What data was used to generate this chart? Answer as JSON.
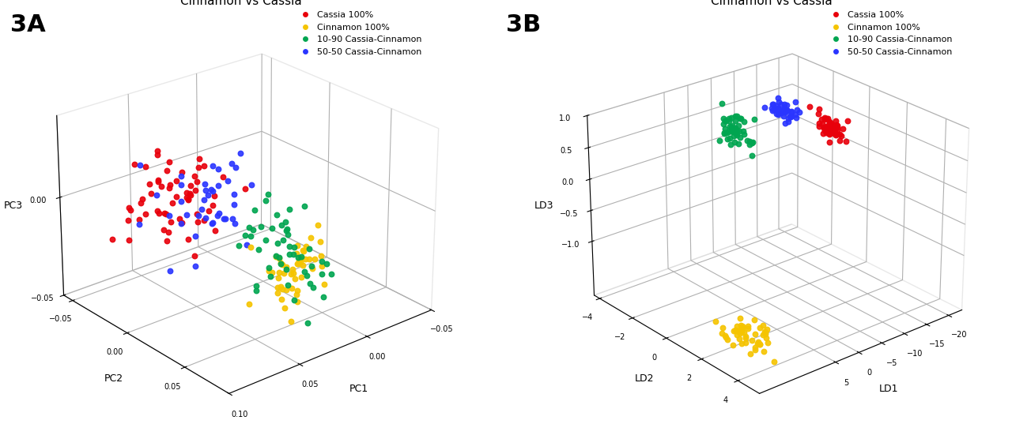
{
  "title_A": "Cinnamon vs Cassia",
  "title_B": "Cinnamon vs Cassia",
  "label_A": "3A",
  "label_B": "3B",
  "legend_labels": [
    "Cassia 100%",
    "Cinnamon 100%",
    "10-90 Cassia-Cinnamon",
    "50-50 Cassia-Cinnamon"
  ],
  "colors": [
    "#e8000b",
    "#f5c400",
    "#00a550",
    "#2a35ff"
  ],
  "xlabel_A": "PC1",
  "ylabel_A": "PC2",
  "zlabel_A": "PC3",
  "xlabel_B": "LD1",
  "ylabel_B": "LD2",
  "zlabel_B": "LD3",
  "elev_A": 25,
  "azim_A": 50,
  "elev_B": 25,
  "azim_B": 50,
  "background_color": "#ffffff",
  "title_fontsize": 11,
  "label_fontsize": 9,
  "legend_fontsize": 8,
  "marker_size": 22,
  "seed": 42,
  "n_cassia": 60,
  "n_cinnamon": 50,
  "n_mix1090": 50,
  "n_mix5050": 40,
  "pca_xticks": [
    -0.05,
    0,
    0.05,
    0.1
  ],
  "pca_yticks": [
    -0.05,
    0,
    0.05
  ],
  "pca_zticks": [
    -0.05,
    0
  ],
  "lda_xticks": [
    -20,
    -15,
    -10,
    -5,
    0,
    5
  ],
  "lda_yticks": [
    -4,
    -2,
    0,
    2,
    4
  ],
  "lda_zticks": [
    -1,
    -0.5,
    0,
    0.5,
    1
  ]
}
